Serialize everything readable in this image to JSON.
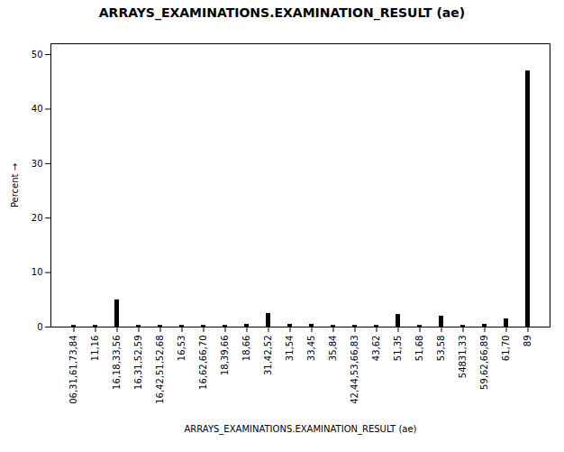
{
  "chart_data": {
    "type": "bar",
    "title": "ARRAYS_EXAMINATIONS.EXAMINATION_RESULT (ae)",
    "xlabel": "ARRAYS_EXAMINATIONS.EXAMINATION_RESULT (ae)",
    "ylabel": "Percent",
    "categories": [
      "06,31,61,73,84",
      "11,16",
      "16,18,33,56",
      "16,31,52,59",
      "16,42,51,52,68",
      "16,53",
      "16,62,66,70",
      "18,39,66",
      "18,66",
      "31,42,52",
      "31,54",
      "33,45",
      "35,84",
      "42,44,53,66,83",
      "43,62",
      "51,35",
      "51,68",
      "53,58",
      "54831,33",
      "59,62,66,89",
      "61,70",
      "89"
    ],
    "values": [
      0.3,
      0.3,
      5.0,
      0.3,
      0.3,
      0.3,
      0.3,
      0.3,
      0.5,
      2.5,
      0.5,
      0.5,
      0.3,
      0.3,
      0.3,
      2.3,
      0.3,
      2.0,
      0.3,
      0.5,
      1.5,
      47.0
    ],
    "color": "#000000",
    "ylim": [
      0,
      52
    ],
    "yticks": [
      0,
      10,
      20,
      30,
      40,
      50
    ],
    "grid": false
  }
}
